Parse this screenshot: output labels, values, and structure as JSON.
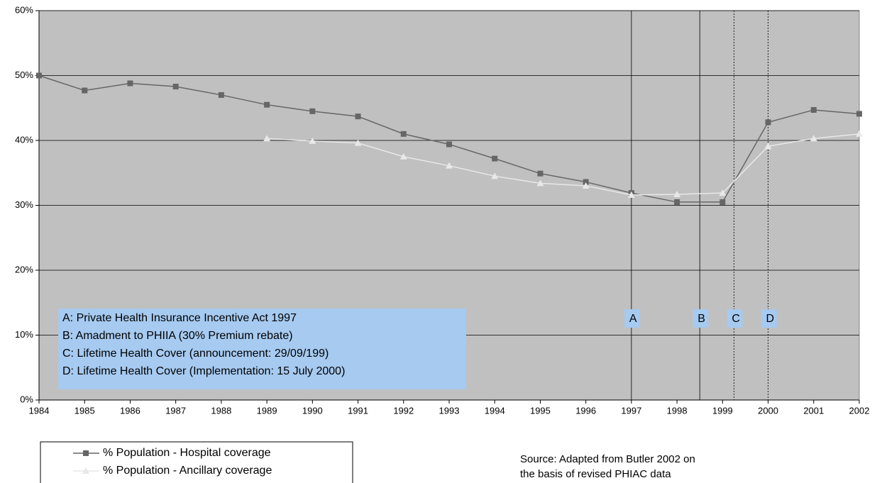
{
  "chart_data": {
    "type": "line",
    "x": [
      1984,
      1985,
      1986,
      1987,
      1988,
      1989,
      1990,
      1991,
      1992,
      1993,
      1994,
      1995,
      1996,
      1997,
      1998,
      1999,
      2000,
      2001,
      2002
    ],
    "series": [
      {
        "name": "% Population - Hospital coverage",
        "color": "#666666",
        "marker": "square",
        "values": [
          50,
          47.7,
          48.8,
          48.3,
          47.0,
          45.5,
          44.5,
          43.7,
          41.0,
          39.4,
          37.2,
          34.9,
          33.6,
          31.9,
          30.5,
          30.5,
          42.8,
          44.7,
          44.1
        ]
      },
      {
        "name": "% Population - Ancillary coverage",
        "color": "#e8e8e8",
        "marker": "triangle",
        "values": [
          null,
          null,
          null,
          null,
          null,
          40.3,
          39.9,
          39.6,
          37.5,
          36.1,
          34.5,
          33.4,
          33.0,
          31.6,
          31.7,
          31.9,
          39.1,
          40.3,
          41.0
        ]
      }
    ],
    "xlim": [
      1984,
      2002
    ],
    "xticks": [
      1984,
      1985,
      1986,
      1987,
      1988,
      1989,
      1990,
      1991,
      1992,
      1993,
      1994,
      1995,
      1996,
      1997,
      1998,
      1999,
      2000,
      2001,
      2002
    ],
    "ylim": [
      0,
      60
    ],
    "yticks": [
      {
        "value": 0,
        "label": "0%"
      },
      {
        "value": 10,
        "label": "10%"
      },
      {
        "value": 20,
        "label": "20%"
      },
      {
        "value": 30,
        "label": "30%"
      },
      {
        "value": 40,
        "label": "40%"
      },
      {
        "value": 50,
        "label": "50%"
      },
      {
        "value": 60,
        "label": "60%"
      }
    ],
    "grid": true,
    "plot_background": "#c0c0c0",
    "events": [
      {
        "label": "A",
        "x": 1997,
        "dashed": false
      },
      {
        "label": "B",
        "x": 1998.5,
        "dashed": false
      },
      {
        "label": "C",
        "x": 1999.25,
        "dashed": true
      },
      {
        "label": "D",
        "x": 2000,
        "dashed": true
      }
    ],
    "notes": [
      "A: Private Health Insurance Incentive Act 1997",
      "B: Amadment to PHIIA (30% Premium rebate)",
      "C: Lifetime Health Cover (announcement: 29/09/199)",
      "D: Lifetime Health Cover (Implementation: 15 July 2000)"
    ],
    "source": [
      "Source: Adapted from Butler 2002 on",
      "the basis of revised PHIAC data"
    ]
  }
}
